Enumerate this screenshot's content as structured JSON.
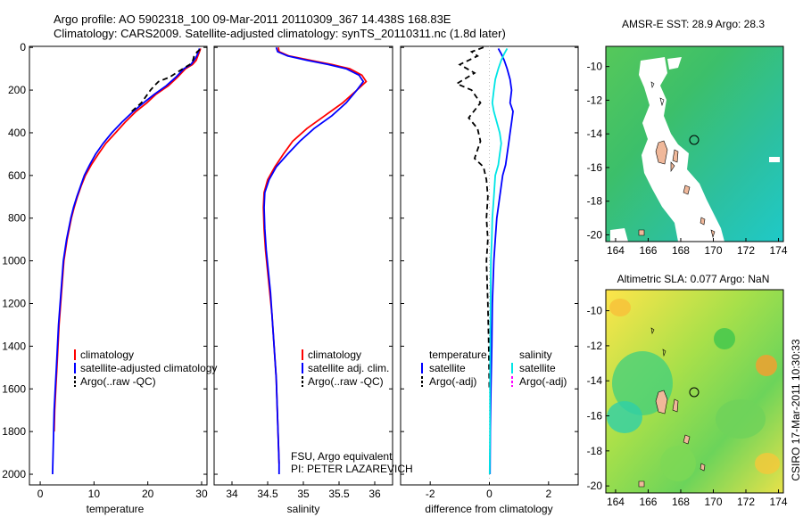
{
  "figure": {
    "title_line1": "Argo profile: AO 5902318_100 09-Mar-2011 20110309_367 14.438S 168.83E",
    "title_line2": "Climatology: CARS2009. Satellite-adjusted climatology: synTS_20110311.nc (1.8d later)",
    "side_label": "CSIRO 17-Mar-2011 10:30:33",
    "colors": {
      "climatology": "#ff0000",
      "satellite": "#0000ff",
      "argo": "#000000",
      "sal_satellite": "#00e5e5",
      "sal_argo": "#ff00ff",
      "grid": "#bbbbbb"
    }
  },
  "chart_data": [
    {
      "type": "line",
      "panel": "temperature",
      "xlabel": "temperature",
      "ylabel": "",
      "xlim": [
        -2,
        31
      ],
      "ylim": [
        2050,
        -5
      ],
      "y_reversed": true,
      "xticks": [
        0,
        10,
        20,
        30
      ],
      "yticks": [
        0,
        200,
        400,
        600,
        800,
        1000,
        1200,
        1400,
        1600,
        1800,
        2000
      ],
      "legend": [
        "climatology",
        "satellite-adjusted climatology",
        "Argo(..raw -QC)"
      ],
      "legend_position": "lower-right",
      "series": [
        {
          "name": "climatology",
          "color": "#ff0000",
          "dash": "",
          "points": [
            [
              29.8,
              5
            ],
            [
              29.6,
              20
            ],
            [
              29.3,
              40
            ],
            [
              29.0,
              60
            ],
            [
              28.3,
              80
            ],
            [
              27.0,
              100
            ],
            [
              25.5,
              140
            ],
            [
              23.8,
              180
            ],
            [
              21.5,
              220
            ],
            [
              19.8,
              260
            ],
            [
              17.8,
              300
            ],
            [
              15.8,
              350
            ],
            [
              14.0,
              400
            ],
            [
              12.2,
              450
            ],
            [
              10.8,
              500
            ],
            [
              9.5,
              550
            ],
            [
              8.4,
              600
            ],
            [
              7.6,
              650
            ],
            [
              6.9,
              700
            ],
            [
              6.3,
              750
            ],
            [
              5.8,
              800
            ],
            [
              5.4,
              850
            ],
            [
              5.0,
              900
            ],
            [
              4.7,
              950
            ],
            [
              4.4,
              1000
            ],
            [
              4.1,
              1100
            ],
            [
              3.8,
              1200
            ],
            [
              3.5,
              1300
            ],
            [
              3.3,
              1400
            ],
            [
              3.1,
              1500
            ],
            [
              2.9,
              1600
            ],
            [
              2.7,
              1700
            ],
            [
              2.6,
              1800
            ]
          ]
        },
        {
          "name": "satellite-adjusted climatology",
          "color": "#0000ff",
          "dash": "",
          "points": [
            [
              29.6,
              5
            ],
            [
              29.4,
              20
            ],
            [
              29.1,
              40
            ],
            [
              28.6,
              60
            ],
            [
              28.0,
              80
            ],
            [
              26.7,
              100
            ],
            [
              25.2,
              140
            ],
            [
              23.4,
              180
            ],
            [
              21.2,
              220
            ],
            [
              19.2,
              260
            ],
            [
              17.3,
              300
            ],
            [
              15.2,
              350
            ],
            [
              13.3,
              400
            ],
            [
              11.7,
              450
            ],
            [
              10.3,
              500
            ],
            [
              9.2,
              550
            ],
            [
              8.2,
              600
            ],
            [
              7.5,
              650
            ],
            [
              6.8,
              700
            ],
            [
              6.2,
              750
            ],
            [
              5.7,
              800
            ],
            [
              5.3,
              850
            ],
            [
              4.9,
              900
            ],
            [
              4.6,
              950
            ],
            [
              4.3,
              1000
            ],
            [
              4.0,
              1100
            ],
            [
              3.7,
              1200
            ],
            [
              3.4,
              1300
            ],
            [
              3.2,
              1400
            ],
            [
              3.0,
              1500
            ],
            [
              2.8,
              1600
            ],
            [
              2.6,
              1700
            ],
            [
              2.5,
              1800
            ],
            [
              2.4,
              1900
            ],
            [
              2.3,
              2000
            ]
          ]
        },
        {
          "name": "Argo(..raw -QC)",
          "color": "#000000",
          "dash": "6,4",
          "points": [
            [
              29.7,
              10
            ],
            [
              29.2,
              20
            ],
            [
              28.6,
              40
            ],
            [
              28.4,
              60
            ],
            [
              27.8,
              80
            ],
            [
              26.5,
              100
            ],
            [
              24.0,
              140
            ],
            [
              22.0,
              160
            ],
            [
              21.2,
              180
            ],
            [
              20.5,
              200
            ],
            [
              18.8,
              260
            ],
            [
              17.0,
              300
            ]
          ]
        }
      ]
    },
    {
      "type": "line",
      "panel": "salinity",
      "xlabel": "salinity",
      "ylabel": "",
      "xlim": [
        33.75,
        36.25
      ],
      "ylim": [
        2050,
        -5
      ],
      "y_reversed": true,
      "xticks": [
        34,
        34.5,
        35,
        35.5,
        36
      ],
      "yticks": [
        0,
        200,
        400,
        600,
        800,
        1000,
        1200,
        1400,
        1600,
        1800,
        2000
      ],
      "legend": [
        "climatology",
        "satellite adj. clim.",
        "Argo(..raw -QC)"
      ],
      "legend_position": "lower-right",
      "annotations": [
        "FSU, Argo equivalent",
        "PI: PETER LAZAREVICH"
      ],
      "series": [
        {
          "name": "climatology",
          "color": "#ff0000",
          "dash": "",
          "points": [
            [
              34.65,
              0
            ],
            [
              34.66,
              20
            ],
            [
              34.8,
              40
            ],
            [
              35.1,
              60
            ],
            [
              35.4,
              80
            ],
            [
              35.65,
              100
            ],
            [
              35.82,
              130
            ],
            [
              35.88,
              160
            ],
            [
              35.75,
              200
            ],
            [
              35.55,
              260
            ],
            [
              35.3,
              320
            ],
            [
              35.05,
              380
            ],
            [
              34.85,
              440
            ],
            [
              34.72,
              500
            ],
            [
              34.6,
              560
            ],
            [
              34.5,
              620
            ],
            [
              34.45,
              680
            ],
            [
              34.44,
              750
            ],
            [
              34.45,
              850
            ],
            [
              34.47,
              950
            ],
            [
              34.5,
              1050
            ],
            [
              34.53,
              1150
            ],
            [
              34.56,
              1250
            ],
            [
              34.58,
              1350
            ],
            [
              34.6,
              1450
            ],
            [
              34.62,
              1550
            ],
            [
              34.63,
              1650
            ],
            [
              34.64,
              1750
            ],
            [
              34.65,
              1850
            ],
            [
              34.66,
              1950
            ]
          ]
        },
        {
          "name": "satellite adj. clim.",
          "color": "#0000ff",
          "dash": "",
          "points": [
            [
              34.62,
              0
            ],
            [
              34.64,
              20
            ],
            [
              34.78,
              40
            ],
            [
              35.05,
              60
            ],
            [
              35.35,
              80
            ],
            [
              35.6,
              100
            ],
            [
              35.78,
              130
            ],
            [
              35.84,
              160
            ],
            [
              35.75,
              200
            ],
            [
              35.6,
              260
            ],
            [
              35.4,
              320
            ],
            [
              35.15,
              380
            ],
            [
              34.95,
              440
            ],
            [
              34.78,
              500
            ],
            [
              34.62,
              560
            ],
            [
              34.52,
              620
            ],
            [
              34.46,
              680
            ],
            [
              34.45,
              750
            ],
            [
              34.46,
              850
            ],
            [
              34.48,
              950
            ],
            [
              34.51,
              1050
            ],
            [
              34.54,
              1150
            ],
            [
              34.56,
              1250
            ],
            [
              34.58,
              1350
            ],
            [
              34.6,
              1450
            ],
            [
              34.62,
              1550
            ],
            [
              34.63,
              1650
            ],
            [
              34.64,
              1750
            ],
            [
              34.65,
              1850
            ],
            [
              34.66,
              1950
            ],
            [
              34.66,
              2000
            ]
          ]
        }
      ]
    },
    {
      "type": "line",
      "panel": "difference",
      "xlabel": "difference from climatology",
      "ylabel": "",
      "xlim": [
        -3,
        3
      ],
      "ylim": [
        2050,
        -5
      ],
      "y_reversed": true,
      "xticks": [
        -2,
        0,
        2
      ],
      "yticks": [
        0,
        200,
        400,
        600,
        800,
        1000,
        1200,
        1400,
        1600,
        1800,
        2000
      ],
      "legend_headers": [
        "temperature",
        "salinity"
      ],
      "legend": [
        "satellite",
        "Argo(-adj)",
        "satellite",
        "Argo(-adj)"
      ],
      "legend_position": "lower-right",
      "series": [
        {
          "name": "temperature satellite",
          "color": "#0000ff",
          "dash": "",
          "points": [
            [
              0.3,
              5
            ],
            [
              0.4,
              30
            ],
            [
              0.5,
              60
            ],
            [
              0.6,
              100
            ],
            [
              0.7,
              150
            ],
            [
              0.75,
              200
            ],
            [
              0.7,
              260
            ],
            [
              0.8,
              300
            ],
            [
              0.75,
              350
            ],
            [
              0.7,
              400
            ],
            [
              0.65,
              450
            ],
            [
              0.6,
              500
            ],
            [
              0.55,
              550
            ],
            [
              0.45,
              600
            ],
            [
              0.35,
              700
            ],
            [
              0.25,
              800
            ],
            [
              0.2,
              900
            ],
            [
              0.15,
              1000
            ],
            [
              0.1,
              1200
            ],
            [
              0.08,
              1400
            ],
            [
              0.05,
              1600
            ],
            [
              0.03,
              1800
            ],
            [
              0.02,
              2000
            ]
          ]
        },
        {
          "name": "temperature Argo(-adj)",
          "color": "#000000",
          "dash": "6,4",
          "points": [
            [
              -0.2,
              0
            ],
            [
              -0.6,
              20
            ],
            [
              -0.4,
              40
            ],
            [
              -1.0,
              80
            ],
            [
              -0.5,
              120
            ],
            [
              -1.1,
              170
            ],
            [
              -0.6,
              200
            ],
            [
              -0.3,
              260
            ],
            [
              -0.7,
              330
            ],
            [
              -0.4,
              380
            ],
            [
              -0.3,
              440
            ],
            [
              -0.5,
              520
            ],
            [
              -0.2,
              560
            ],
            [
              -0.1,
              620
            ],
            [
              -0.05,
              700
            ],
            [
              -0.1,
              800
            ],
            [
              -0.05,
              900
            ],
            [
              -0.1,
              1000
            ],
            [
              -0.05,
              1200
            ],
            [
              -0.02,
              1400
            ],
            [
              0.0,
              1600
            ]
          ]
        },
        {
          "name": "salinity satellite",
          "color": "#00e5e5",
          "dash": "",
          "points": [
            [
              0.6,
              5
            ],
            [
              0.5,
              30
            ],
            [
              0.4,
              60
            ],
            [
              0.3,
              100
            ],
            [
              0.2,
              150
            ],
            [
              0.15,
              200
            ],
            [
              0.1,
              260
            ],
            [
              0.15,
              300
            ],
            [
              0.25,
              350
            ],
            [
              0.35,
              400
            ],
            [
              0.4,
              450
            ],
            [
              0.35,
              500
            ],
            [
              0.3,
              550
            ],
            [
              0.2,
              600
            ],
            [
              0.15,
              700
            ],
            [
              0.1,
              800
            ],
            [
              0.08,
              900
            ],
            [
              0.05,
              1000
            ],
            [
              0.04,
              1200
            ],
            [
              0.03,
              1400
            ],
            [
              0.02,
              1600
            ],
            [
              0.02,
              1800
            ],
            [
              0.01,
              2000
            ]
          ]
        }
      ]
    },
    {
      "type": "heatmap",
      "panel": "sst_map",
      "title": "AMSR-E SST: 28.9 Argo: 28.3",
      "xlim": [
        163.4,
        174.3
      ],
      "ylim": [
        -20.4,
        -8.8
      ],
      "xticks": [
        164,
        166,
        168,
        170,
        172,
        174
      ],
      "yticks": [
        -10,
        -12,
        -14,
        -16,
        -18,
        -20
      ],
      "argo_position": {
        "lon": 168.83,
        "lat": -14.438
      }
    },
    {
      "type": "heatmap",
      "panel": "sla_map",
      "title": "Altimetric SLA: 0.077 Argo: NaN",
      "xlim": [
        163.4,
        174.3
      ],
      "ylim": [
        -20.4,
        -8.8
      ],
      "xticks": [
        164,
        166,
        168,
        170,
        172,
        174
      ],
      "yticks": [
        -10,
        -12,
        -14,
        -16,
        -18,
        -20
      ],
      "argo_position": {
        "lon": 168.83,
        "lat": -14.438
      }
    }
  ]
}
